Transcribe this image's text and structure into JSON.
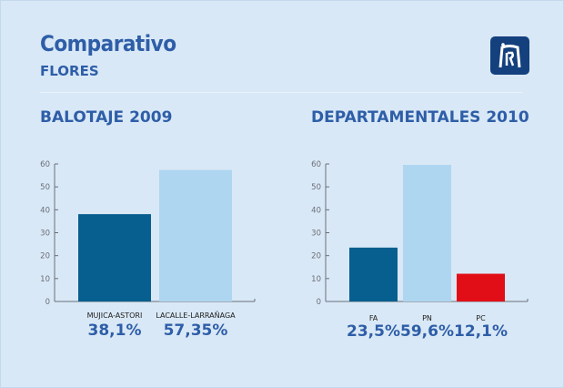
{
  "header": {
    "title": "Comparativo",
    "subtitle": "FLORES",
    "logo_icon": "monument-logo-icon"
  },
  "chart_data": [
    {
      "type": "bar",
      "title": "BALOTAJE 2009",
      "categories": [
        "MUJICA-ASTORI",
        "LACALLE-LARRAÑAGA"
      ],
      "values": [
        38.1,
        57.35
      ],
      "value_labels": [
        "38,1%",
        "57,35%"
      ],
      "colors": [
        "#075f8f",
        "#aed6f1"
      ],
      "ylim": [
        0,
        60
      ],
      "yticks": [
        0,
        10,
        20,
        30,
        40,
        50,
        60
      ],
      "xlabel": "",
      "ylabel": "",
      "grid": false
    },
    {
      "type": "bar",
      "title": "DEPARTAMENTALES 2010",
      "categories": [
        "FA",
        "PN",
        "PC"
      ],
      "values": [
        23.5,
        59.6,
        12.1
      ],
      "value_labels": [
        "23,5%",
        "59,6%",
        "12,1%"
      ],
      "colors": [
        "#075f8f",
        "#aed6f1",
        "#e20e17"
      ],
      "ylim": [
        0,
        60
      ],
      "yticks": [
        0,
        10,
        20,
        30,
        40,
        50,
        60
      ],
      "xlabel": "",
      "ylabel": "",
      "grid": false
    }
  ]
}
